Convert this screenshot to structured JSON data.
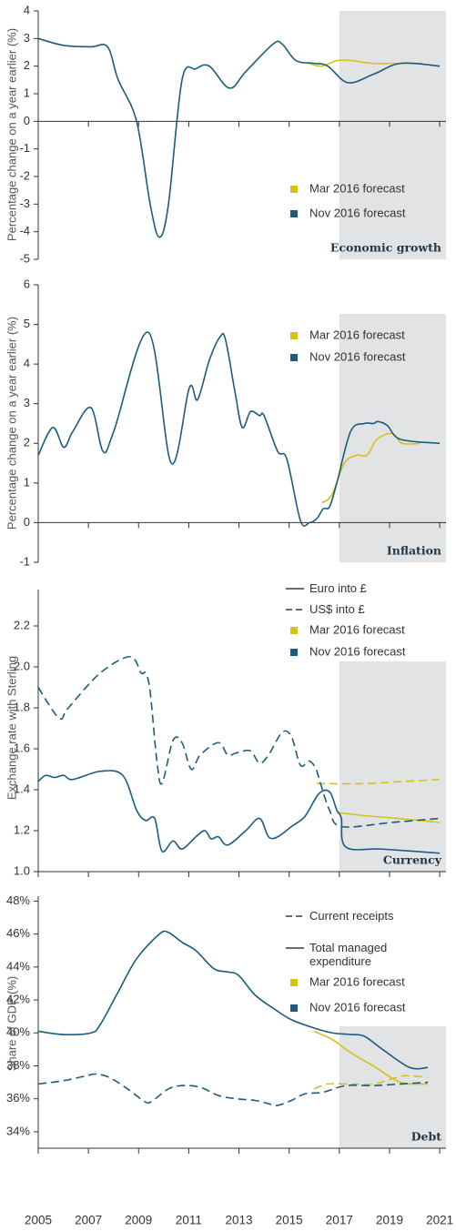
{
  "chart_data": [
    {
      "type": "line",
      "ylabel": "Percentage change on a year earlier (%)",
      "label": "Economic growth",
      "xlim": [
        2005,
        2021.25
      ],
      "ylim": [
        -5,
        4
      ],
      "yticks": [
        -5,
        -4,
        -3,
        -2,
        -1,
        0,
        1,
        2,
        3,
        4
      ],
      "shade_from": 2017,
      "forecasts": [
        {
          "name": "Mar 2016 forecast",
          "color": "#d4c21a"
        },
        {
          "name": "Nov 2016 forecast",
          "color": "#1d5b7e"
        }
      ],
      "series": [
        {
          "forecast": 0,
          "x": [
            2015.8,
            2016.3,
            2016.9,
            2017.5,
            2018.3,
            2019.4,
            2020.3
          ],
          "values": [
            2.1,
            2.0,
            2.2,
            2.2,
            2.1,
            2.1,
            2.1
          ]
        },
        {
          "forecast": 1,
          "x": [
            2005,
            2006.02,
            2007.1,
            2007.76,
            2008.19,
            2008.92,
            2009.46,
            2009.83,
            2010.19,
            2010.73,
            2011.28,
            2011.82,
            2012.62,
            2013.27,
            2014.36,
            2014.72,
            2015.27,
            2015.99,
            2016.54,
            2017.34,
            2018.35,
            2019.44,
            2021
          ],
          "values": [
            3.0,
            2.75,
            2.7,
            2.7,
            1.5,
            0.0,
            -3.0,
            -4.2,
            -3.0,
            1.5,
            1.9,
            2.0,
            1.2,
            1.8,
            2.8,
            2.8,
            2.2,
            2.1,
            2.0,
            1.4,
            1.7,
            2.1,
            2.0
          ]
        }
      ]
    },
    {
      "type": "line",
      "ylabel": "Percentage change on a year earlier (%)",
      "label": "Inflation",
      "xlim": [
        2005,
        2021.25
      ],
      "ylim": [
        -1,
        6
      ],
      "yticks": [
        -1,
        0,
        1,
        2,
        3,
        4,
        5,
        6
      ],
      "shade_from": 2017,
      "forecasts": [
        {
          "name": "Mar 2016 forecast",
          "color": "#d4c21a"
        },
        {
          "name": "Nov 2016 forecast",
          "color": "#1d5b7e"
        }
      ],
      "series": [
        {
          "forecast": 0,
          "x": [
            2016.3,
            2016.7,
            2017.2,
            2017.7,
            2018.1,
            2018.5,
            2019.1,
            2019.5,
            2020.2
          ],
          "values": [
            0.5,
            0.7,
            1.5,
            1.7,
            1.7,
            2.1,
            2.25,
            2.0,
            2.0
          ]
        },
        {
          "forecast": 1,
          "x": [
            2005,
            2005.58,
            2006.02,
            2006.38,
            2007.1,
            2007.58,
            2008.01,
            2009.39,
            2010.3,
            2011.02,
            2011.35,
            2011.82,
            2012.26,
            2012.47,
            2012.84,
            2013.13,
            2013.46,
            2013.82,
            2014.0,
            2014.54,
            2014.91,
            2015.45,
            2015.81,
            2016.1,
            2016.36,
            2016.61,
            2016.9,
            2017.45,
            2018.0,
            2018.36,
            2018.54,
            2018.91,
            2019.44,
            2021
          ],
          "values": [
            1.7,
            2.4,
            1.9,
            2.3,
            2.9,
            1.8,
            2.3,
            4.8,
            1.5,
            3.4,
            3.1,
            4.1,
            4.7,
            4.6,
            3.3,
            2.4,
            2.8,
            2.7,
            2.7,
            1.8,
            1.6,
            0.05,
            0.0,
            0.1,
            0.35,
            0.4,
            1.0,
            2.3,
            2.5,
            2.5,
            2.55,
            2.45,
            2.1,
            2.0
          ]
        }
      ]
    },
    {
      "type": "line",
      "ylabel": "Exchange rate with Sterling",
      "label": "Currency",
      "xlim": [
        2005,
        2021.25
      ],
      "ylim": [
        1.0,
        2.2
      ],
      "yticks": [
        {
          "value": 1.0,
          "label": "1.0"
        },
        1.2,
        1.4,
        1.6,
        1.8,
        {
          "value": 2.0,
          "label": "2.0"
        },
        2.2
      ],
      "shade_from": 2017,
      "line_styles": [
        {
          "name": "Euro into £",
          "dash": "solid"
        },
        {
          "name": "US$ into £",
          "dash": "dashed"
        }
      ],
      "forecasts": [
        {
          "name": "Mar 2016 forecast",
          "color": "#d4c21a"
        },
        {
          "name": "Nov 2016 forecast",
          "color": "#1d5b7e"
        }
      ],
      "series": [
        {
          "style": 0,
          "forecast": 0,
          "x": [
            2016.9,
            2017.5,
            2018.3,
            2019.3,
            2020.2,
            2021
          ],
          "values": [
            1.29,
            1.28,
            1.27,
            1.26,
            1.25,
            1.24
          ]
        },
        {
          "style": 1,
          "forecast": 0,
          "x": [
            2016.1,
            2018,
            2019.5,
            2021
          ],
          "values": [
            1.43,
            1.43,
            1.44,
            1.45
          ]
        },
        {
          "style": 0,
          "forecast": 1,
          "x": [
            2005,
            2005.29,
            2005.65,
            2006.02,
            2006.38,
            2007.47,
            2008.37,
            2008.92,
            2009.28,
            2009.64,
            2009.93,
            2010.37,
            2010.73,
            2011.28,
            2011.64,
            2011.89,
            2012.18,
            2012.55,
            2013.27,
            2013.82,
            2014.18,
            2014.54,
            2015.09,
            2015.63,
            2016.18,
            2016.61,
            2016.9,
            2017.08,
            2017.26,
            2018.72,
            2021
          ],
          "values": [
            1.44,
            1.47,
            1.46,
            1.47,
            1.45,
            1.49,
            1.47,
            1.3,
            1.25,
            1.26,
            1.1,
            1.15,
            1.11,
            1.17,
            1.2,
            1.16,
            1.17,
            1.13,
            1.2,
            1.26,
            1.17,
            1.17,
            1.22,
            1.27,
            1.38,
            1.39,
            1.3,
            1.26,
            1.12,
            1.11,
            1.09
          ]
        },
        {
          "style": 1,
          "forecast": 1,
          "x": [
            2005,
            2005.83,
            2006.2,
            2007.47,
            2008.66,
            2009.1,
            2009.28,
            2009.46,
            2009.72,
            2009.93,
            2010.37,
            2010.73,
            2011.1,
            2011.46,
            2012.18,
            2012.55,
            2012.9,
            2013.45,
            2013.82,
            2014.18,
            2014.72,
            2015.09,
            2015.45,
            2015.81,
            2016.07,
            2016.25,
            2016.61,
            2017.08,
            2019.08,
            2021
          ],
          "values": [
            1.9,
            1.75,
            1.8,
            1.97,
            2.05,
            1.97,
            1.97,
            1.88,
            1.55,
            1.43,
            1.64,
            1.63,
            1.5,
            1.57,
            1.63,
            1.57,
            1.58,
            1.59,
            1.53,
            1.57,
            1.68,
            1.66,
            1.52,
            1.54,
            1.5,
            1.43,
            1.3,
            1.22,
            1.24,
            1.26
          ]
        }
      ]
    },
    {
      "type": "line",
      "ylabel": "Share of GDP (%)",
      "label": "Debt",
      "xlim": [
        2005,
        2021.25
      ],
      "ylim": [
        33,
        48.3
      ],
      "yticks": [
        {
          "value": 34,
          "label": "34%"
        },
        {
          "value": 36,
          "label": "36%"
        },
        {
          "value": 38,
          "label": "38%"
        },
        {
          "value": 40,
          "label": "40%"
        },
        {
          "value": 42,
          "label": "42%"
        },
        {
          "value": 44,
          "label": "44%"
        },
        {
          "value": 46,
          "label": "46%"
        },
        {
          "value": 48,
          "label": "48%"
        }
      ],
      "xticks": [
        2005,
        2007,
        2009,
        2011,
        2013,
        2015,
        2017,
        2019,
        2021
      ],
      "shade_from": 2017,
      "line_styles": [
        {
          "name": "Current receipts",
          "dash": "dashed"
        },
        {
          "name": "Total managed expenditure",
          "dash": "solid"
        }
      ],
      "forecasts": [
        {
          "name": "Mar 2016 forecast",
          "color": "#d4c21a"
        },
        {
          "name": "Nov 2016 forecast",
          "color": "#1d5b7e"
        }
      ],
      "series": [
        {
          "style": 1,
          "forecast": 0,
          "x": [
            2015.99,
            2016.72,
            2017.45,
            2018.35,
            2019.44,
            2020.53
          ],
          "values": [
            40.1,
            39.6,
            38.8,
            38.0,
            37.0,
            36.9
          ]
        },
        {
          "style": 0,
          "forecast": 0,
          "x": [
            2015.99,
            2016.54,
            2017.26,
            2018.35,
            2019.08,
            2019.62,
            2020.53
          ],
          "values": [
            36.6,
            36.9,
            36.9,
            36.9,
            37.2,
            37.4,
            37.3
          ]
        },
        {
          "style": 1,
          "forecast": 1,
          "x": [
            2005,
            2006.02,
            2007.1,
            2007.47,
            2008.19,
            2008.92,
            2009.83,
            2010.19,
            2010.73,
            2011.28,
            2012.0,
            2012.55,
            2012.98,
            2013.64,
            2014.36,
            2015.09,
            2015.99,
            2016.72,
            2017.45,
            2017.99,
            2018.72,
            2019.8,
            2020.53
          ],
          "values": [
            40.1,
            39.9,
            40.0,
            40.5,
            42.5,
            44.5,
            46.0,
            46.1,
            45.5,
            45.0,
            43.9,
            43.7,
            43.5,
            42.3,
            41.5,
            40.8,
            40.3,
            40.0,
            39.9,
            39.8,
            39.0,
            37.9,
            37.9
          ]
        },
        {
          "style": 0,
          "forecast": 1,
          "x": [
            2005,
            2006.02,
            2006.92,
            2007.29,
            2007.83,
            2008.56,
            2009.28,
            2009.57,
            2010.19,
            2010.73,
            2011.46,
            2012.18,
            2012.9,
            2013.64,
            2014.18,
            2014.54,
            2015.09,
            2015.63,
            2016.36,
            2017.26,
            2018.35,
            2019.44,
            2020.53
          ],
          "values": [
            36.9,
            37.1,
            37.4,
            37.5,
            37.3,
            36.6,
            35.8,
            35.9,
            36.6,
            36.8,
            36.7,
            36.2,
            36.0,
            35.9,
            35.7,
            35.6,
            35.9,
            36.3,
            36.4,
            36.8,
            36.8,
            36.9,
            37.0
          ]
        }
      ]
    }
  ]
}
